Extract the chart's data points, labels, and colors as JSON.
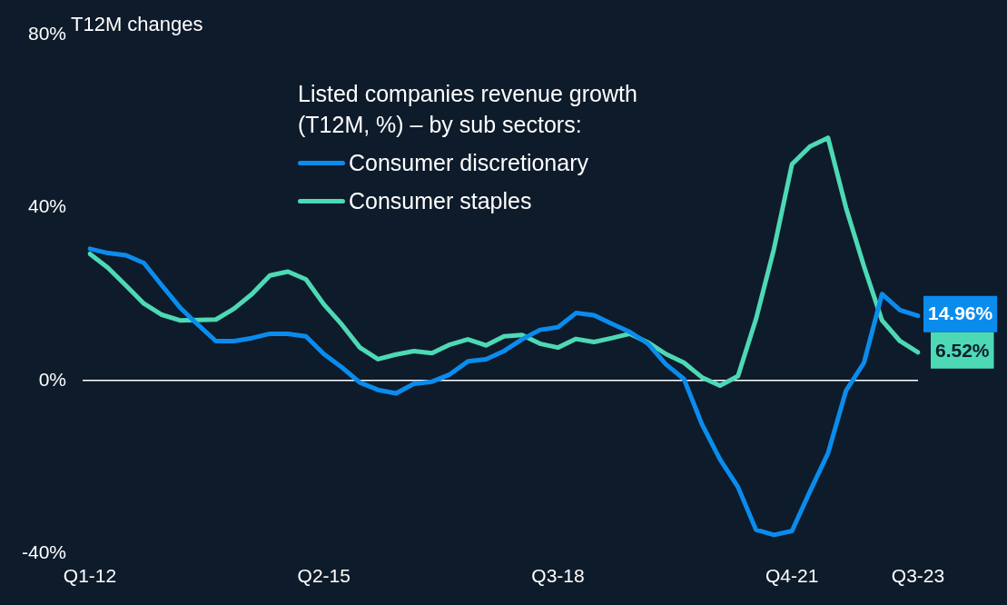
{
  "chart_data": {
    "type": "line",
    "ylabel": "T12M changes",
    "legend_title": "Listed companies revenue growth (T12M, %) – by sub sectors:",
    "categories": [
      "Q1-12",
      null,
      null,
      null,
      null,
      null,
      null,
      null,
      null,
      null,
      null,
      null,
      null,
      "Q2-15",
      null,
      null,
      null,
      null,
      null,
      null,
      null,
      null,
      null,
      null,
      null,
      null,
      "Q3-18",
      null,
      null,
      null,
      null,
      null,
      null,
      null,
      null,
      null,
      null,
      null,
      null,
      "Q4-21",
      null,
      null,
      null,
      null,
      null,
      null,
      "Q3-23"
    ],
    "series": [
      {
        "name": "Consumer discretionary",
        "color": "#0a8ced",
        "values": [
          30.5,
          29.5,
          29.0,
          27.2,
          22.0,
          16.9,
          12.9,
          9.1,
          9.1,
          9.8,
          10.8,
          10.8,
          10.2,
          6.1,
          3.0,
          -0.5,
          -2.2,
          -3.0,
          -0.8,
          -0.3,
          1.4,
          4.4,
          4.9,
          6.8,
          9.5,
          11.7,
          12.3,
          15.6,
          15.1,
          13.1,
          11.2,
          8.5,
          3.7,
          0.3,
          -10.2,
          -18.3,
          -24.7,
          -34.6,
          -35.8,
          -34.9,
          -25.7,
          -16.9,
          -2.4,
          4.1,
          20.0,
          16.3,
          14.96
        ],
        "value_labels": [
          null,
          null,
          null,
          null,
          null,
          null,
          null,
          null,
          null,
          null,
          null,
          null,
          null,
          null,
          null,
          null,
          null,
          null,
          null,
          null,
          null,
          null,
          null,
          null,
          null,
          null,
          null,
          null,
          null,
          null,
          null,
          null,
          null,
          null,
          null,
          null,
          null,
          null,
          null,
          null,
          null,
          null,
          null,
          null,
          null,
          null,
          "14.96%"
        ]
      },
      {
        "name": "Consumer staples",
        "color": "#4dd9b4",
        "values": [
          29.3,
          26.1,
          22.0,
          17.8,
          15.2,
          13.9,
          14.0,
          14.1,
          16.6,
          20.0,
          24.3,
          25.2,
          23.4,
          17.6,
          12.9,
          7.6,
          4.9,
          6.0,
          6.8,
          6.3,
          8.3,
          9.5,
          8.1,
          10.2,
          10.5,
          8.5,
          7.6,
          9.6,
          8.9,
          9.8,
          10.8,
          8.8,
          6.1,
          4.1,
          0.7,
          -1.2,
          1.0,
          14.2,
          30.5,
          50.1,
          54.2,
          56.2,
          40.0,
          26.4,
          13.9,
          9.1,
          6.52
        ],
        "value_labels": [
          null,
          null,
          null,
          null,
          null,
          null,
          null,
          null,
          null,
          null,
          null,
          null,
          null,
          null,
          null,
          null,
          null,
          null,
          null,
          null,
          null,
          null,
          null,
          null,
          null,
          null,
          null,
          null,
          null,
          null,
          null,
          null,
          null,
          null,
          null,
          null,
          null,
          null,
          null,
          null,
          null,
          null,
          null,
          null,
          null,
          null,
          "6.52%"
        ]
      }
    ],
    "ylim": [
      -40,
      80
    ],
    "yticks": [
      {
        "value": -40,
        "label": "-40%"
      },
      {
        "value": 0,
        "label": "0%"
      },
      {
        "value": 40,
        "label": "40%"
      },
      {
        "value": 80,
        "label": "80%"
      }
    ],
    "ref_lines": [
      {
        "axis": "y",
        "value": 0,
        "color": "#ffffff"
      }
    ],
    "grid": false,
    "legend": "top",
    "marker": "none",
    "line_style": "solid"
  }
}
